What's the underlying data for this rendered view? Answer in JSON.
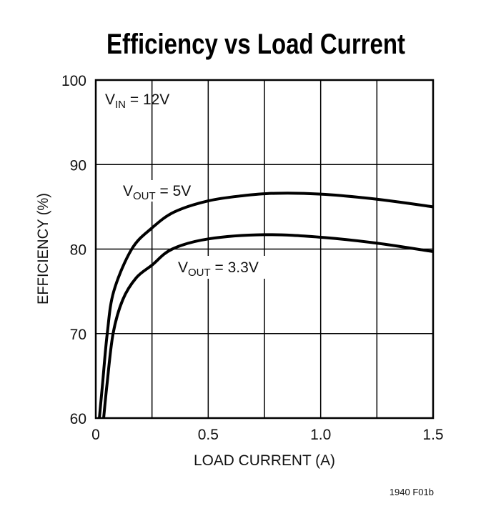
{
  "chart_data": {
    "type": "line",
    "title": "Efficiency vs Load Current",
    "xlabel": "LOAD CURRENT (A)",
    "ylabel": "EFFICIENCY (%)",
    "xlim": [
      0,
      1.5
    ],
    "ylim": [
      60,
      100
    ],
    "xticks": [
      "0",
      "0.5",
      "1.0",
      "1.5"
    ],
    "yticks": [
      "60",
      "70",
      "80",
      "90",
      "100"
    ],
    "x_gridlines": [
      0.25,
      0.5,
      0.75,
      1.0,
      1.25
    ],
    "y_gridlines": [
      70,
      80,
      90
    ],
    "grid": true,
    "annotation_condition": {
      "main": "V",
      "sub": "IN",
      "rest": " = 12V"
    },
    "series": [
      {
        "name": "VOUT = 5V",
        "label_main": "V",
        "label_sub": "OUT",
        "label_rest": " = 5V",
        "x": [
          0.016,
          0.03,
          0.051,
          0.08,
          0.16,
          0.25,
          0.35,
          0.5,
          0.65,
          0.8,
          1.0,
          1.25,
          1.5
        ],
        "y": [
          60,
          64,
          70,
          75,
          80,
          82.5,
          84.4,
          85.7,
          86.3,
          86.6,
          86.5,
          85.9,
          85.0
        ]
      },
      {
        "name": "VOUT = 3.3V",
        "label_main": "V",
        "label_sub": "OUT",
        "label_rest": " = 3.3V",
        "x": [
          0.035,
          0.05,
          0.077,
          0.12,
          0.18,
          0.25,
          0.34,
          0.5,
          0.75,
          1.0,
          1.25,
          1.5
        ],
        "y": [
          60,
          64,
          70,
          74,
          76.6,
          78.1,
          80,
          81.2,
          81.7,
          81.4,
          80.7,
          79.7
        ]
      }
    ],
    "footnote": "1940 F01b",
    "line_color": "#000000"
  }
}
